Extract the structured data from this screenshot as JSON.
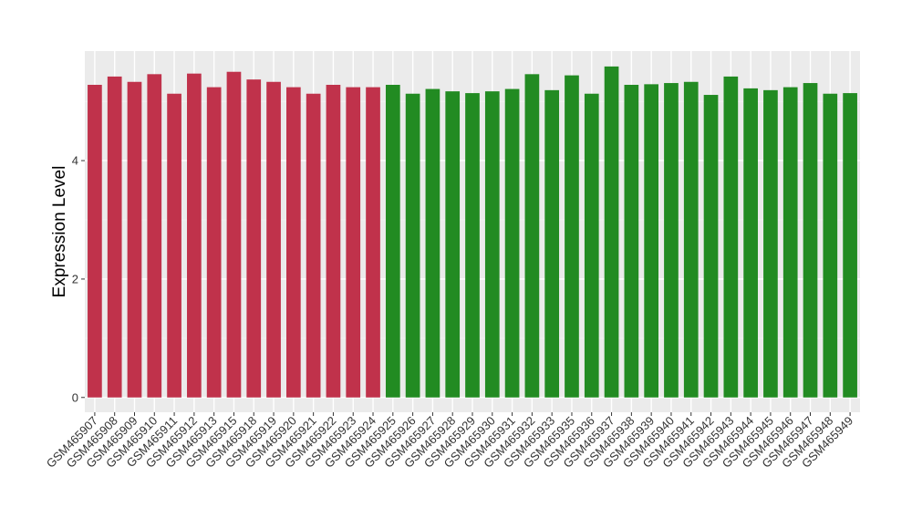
{
  "chart_data": {
    "type": "bar",
    "title": "",
    "xlabel": "",
    "ylabel": "Expression Level",
    "ylim": [
      -0.25,
      5.85
    ],
    "yticks": [
      0,
      2,
      4
    ],
    "grid": true,
    "legend": "none",
    "categories": [
      "GSM465907",
      "GSM465908",
      "GSM465909",
      "GSM465910",
      "GSM465911",
      "GSM465912",
      "GSM465913",
      "GSM465915",
      "GSM465918",
      "GSM465919",
      "GSM465920",
      "GSM465921",
      "GSM465922",
      "GSM465923",
      "GSM465924",
      "GSM465925",
      "GSM465926",
      "GSM465927",
      "GSM465928",
      "GSM465929",
      "GSM465930",
      "GSM465931",
      "GSM465932",
      "GSM465933",
      "GSM465935",
      "GSM465936",
      "GSM465937",
      "GSM465938",
      "GSM465939",
      "GSM465940",
      "GSM465941",
      "GSM465942",
      "GSM465943",
      "GSM465944",
      "GSM465945",
      "GSM465946",
      "GSM465947",
      "GSM465948",
      "GSM465949"
    ],
    "values": [
      5.28,
      5.42,
      5.33,
      5.46,
      5.13,
      5.47,
      5.24,
      5.5,
      5.37,
      5.33,
      5.24,
      5.13,
      5.28,
      5.24,
      5.24,
      5.28,
      5.13,
      5.21,
      5.17,
      5.14,
      5.17,
      5.21,
      5.46,
      5.19,
      5.44,
      5.13,
      5.59,
      5.28,
      5.29,
      5.31,
      5.33,
      5.11,
      5.42,
      5.22,
      5.19,
      5.24,
      5.31,
      5.13,
      5.14
    ],
    "groups": [
      "red",
      "red",
      "red",
      "red",
      "red",
      "red",
      "red",
      "red",
      "red",
      "red",
      "red",
      "red",
      "red",
      "red",
      "red",
      "green",
      "green",
      "green",
      "green",
      "green",
      "green",
      "green",
      "green",
      "green",
      "green",
      "green",
      "green",
      "green",
      "green",
      "green",
      "green",
      "green",
      "green",
      "green",
      "green",
      "green",
      "green",
      "green",
      "green"
    ],
    "colors": {
      "red": "#c0324b",
      "green": "#228b22",
      "panel": "#ebebeb",
      "grid_major": "#ffffff",
      "grid_minor": "#f3f3f3"
    }
  }
}
